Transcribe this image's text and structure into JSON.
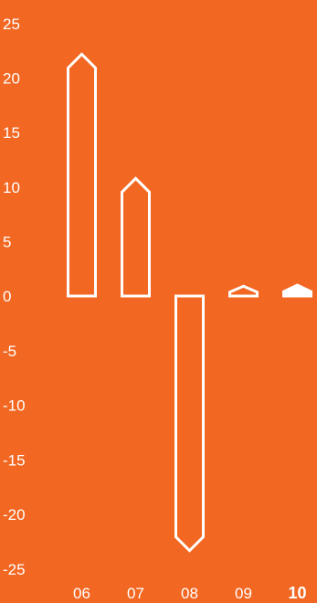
{
  "chart_data": {
    "type": "bar",
    "title": "",
    "xlabel": "",
    "ylabel": "",
    "categories": [
      "06",
      "07",
      "08",
      "09",
      "10"
    ],
    "values": [
      22.2,
      10.8,
      -23.3,
      0.9,
      1.0
    ],
    "highlighted_category": "10",
    "ylim": [
      -25,
      25
    ],
    "yticks": [
      "25",
      "20",
      "15",
      "10",
      "5",
      "0",
      "-5",
      "-10",
      "-15",
      "-20",
      "-25"
    ],
    "grid": false,
    "legend": "none",
    "colors": {
      "background": "#F26722",
      "bar_outline": "#ffffff",
      "highlight_fill": "#ffffff",
      "text": "#ffffff"
    }
  }
}
